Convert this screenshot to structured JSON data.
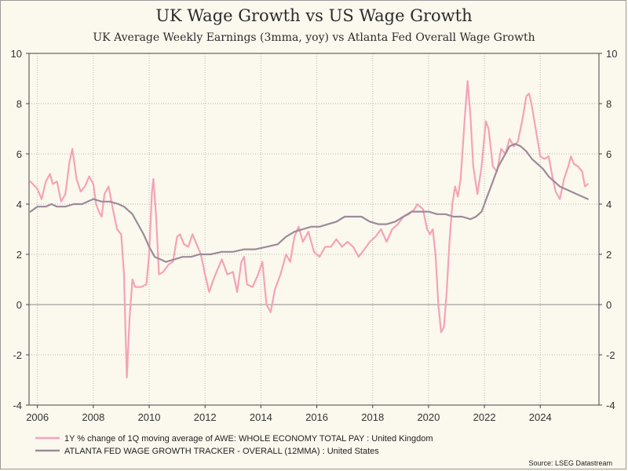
{
  "chart_data": {
    "type": "line",
    "title": "UK Wage Growth vs US Wage Growth",
    "subtitle": "UK Average Weekly Earnings (3mma, yoy) vs Atlanta Fed Overall Wage Growth",
    "source": "Source: LSEG Datastream",
    "xlim": [
      2005.7,
      2026.1
    ],
    "ylim": [
      -4,
      10
    ],
    "x_ticks": [
      2006,
      2008,
      2010,
      2012,
      2014,
      2016,
      2018,
      2020,
      2022,
      2024
    ],
    "x_tick_labels": [
      "2006",
      "2008",
      "2010",
      "2012",
      "2014",
      "2016",
      "2018",
      "2020",
      "2022",
      "2024"
    ],
    "y_ticks": [
      -4,
      -2,
      0,
      2,
      4,
      6,
      8,
      10
    ],
    "y_tick_labels": [
      "-4",
      "-2",
      "0",
      "2",
      "4",
      "6",
      "8",
      "10"
    ],
    "grid": true,
    "legend_position": "bottom-left",
    "series": [
      {
        "name": "1Y % change of 1Q moving average of AWE: WHOLE ECONOMY TOTAL PAY : United Kingdom",
        "color": "#f4a3b6",
        "points": [
          [
            2005.75,
            4.9
          ],
          [
            2006.0,
            4.6
          ],
          [
            2006.15,
            4.2
          ],
          [
            2006.3,
            4.9
          ],
          [
            2006.45,
            5.2
          ],
          [
            2006.55,
            4.8
          ],
          [
            2006.7,
            4.9
          ],
          [
            2006.85,
            4.1
          ],
          [
            2007.0,
            4.4
          ],
          [
            2007.15,
            5.7
          ],
          [
            2007.25,
            6.2
          ],
          [
            2007.4,
            5.0
          ],
          [
            2007.55,
            4.5
          ],
          [
            2007.7,
            4.7
          ],
          [
            2007.85,
            5.1
          ],
          [
            2008.0,
            4.8
          ],
          [
            2008.1,
            4.0
          ],
          [
            2008.2,
            3.7
          ],
          [
            2008.3,
            3.5
          ],
          [
            2008.4,
            4.4
          ],
          [
            2008.55,
            4.7
          ],
          [
            2008.7,
            3.8
          ],
          [
            2008.85,
            3.0
          ],
          [
            2009.0,
            2.8
          ],
          [
            2009.1,
            1.2
          ],
          [
            2009.15,
            -1.0
          ],
          [
            2009.2,
            -2.9
          ],
          [
            2009.3,
            -0.5
          ],
          [
            2009.4,
            1.0
          ],
          [
            2009.5,
            0.7
          ],
          [
            2009.7,
            0.7
          ],
          [
            2009.9,
            0.8
          ],
          [
            2010.0,
            2.0
          ],
          [
            2010.1,
            4.5
          ],
          [
            2010.15,
            5.0
          ],
          [
            2010.25,
            3.5
          ],
          [
            2010.35,
            1.2
          ],
          [
            2010.5,
            1.3
          ],
          [
            2010.7,
            1.6
          ],
          [
            2010.85,
            1.7
          ],
          [
            2011.0,
            2.7
          ],
          [
            2011.1,
            2.8
          ],
          [
            2011.25,
            2.4
          ],
          [
            2011.4,
            2.3
          ],
          [
            2011.55,
            2.8
          ],
          [
            2011.7,
            2.4
          ],
          [
            2011.85,
            2.0
          ],
          [
            2012.0,
            1.2
          ],
          [
            2012.15,
            0.5
          ],
          [
            2012.3,
            1.0
          ],
          [
            2012.45,
            1.4
          ],
          [
            2012.6,
            1.8
          ],
          [
            2012.8,
            1.2
          ],
          [
            2013.0,
            1.3
          ],
          [
            2013.15,
            0.5
          ],
          [
            2013.3,
            1.7
          ],
          [
            2013.4,
            1.9
          ],
          [
            2013.5,
            0.8
          ],
          [
            2013.7,
            0.7
          ],
          [
            2013.9,
            1.2
          ],
          [
            2014.05,
            1.7
          ],
          [
            2014.2,
            0.0
          ],
          [
            2014.35,
            -0.3
          ],
          [
            2014.5,
            0.6
          ],
          [
            2014.7,
            1.2
          ],
          [
            2014.9,
            2.0
          ],
          [
            2015.05,
            1.7
          ],
          [
            2015.2,
            2.7
          ],
          [
            2015.35,
            3.1
          ],
          [
            2015.5,
            2.5
          ],
          [
            2015.7,
            2.9
          ],
          [
            2015.9,
            2.1
          ],
          [
            2016.1,
            1.9
          ],
          [
            2016.3,
            2.3
          ],
          [
            2016.5,
            2.3
          ],
          [
            2016.7,
            2.6
          ],
          [
            2016.9,
            2.3
          ],
          [
            2017.1,
            2.5
          ],
          [
            2017.3,
            2.3
          ],
          [
            2017.5,
            1.9
          ],
          [
            2017.7,
            2.2
          ],
          [
            2017.9,
            2.5
          ],
          [
            2018.1,
            2.7
          ],
          [
            2018.3,
            3.0
          ],
          [
            2018.5,
            2.5
          ],
          [
            2018.7,
            3.0
          ],
          [
            2018.9,
            3.2
          ],
          [
            2019.1,
            3.5
          ],
          [
            2019.3,
            3.6
          ],
          [
            2019.5,
            3.8
          ],
          [
            2019.6,
            4.0
          ],
          [
            2019.8,
            3.8
          ],
          [
            2019.95,
            3.0
          ],
          [
            2020.05,
            2.8
          ],
          [
            2020.15,
            3.0
          ],
          [
            2020.25,
            2.0
          ],
          [
            2020.35,
            0.0
          ],
          [
            2020.45,
            -1.1
          ],
          [
            2020.55,
            -0.9
          ],
          [
            2020.65,
            0.5
          ],
          [
            2020.75,
            2.5
          ],
          [
            2020.85,
            4.0
          ],
          [
            2020.95,
            4.7
          ],
          [
            2021.05,
            4.3
          ],
          [
            2021.15,
            5.0
          ],
          [
            2021.3,
            7.5
          ],
          [
            2021.4,
            8.9
          ],
          [
            2021.5,
            7.5
          ],
          [
            2021.6,
            5.5
          ],
          [
            2021.75,
            4.4
          ],
          [
            2021.9,
            5.5
          ],
          [
            2022.05,
            7.3
          ],
          [
            2022.15,
            7.0
          ],
          [
            2022.3,
            5.5
          ],
          [
            2022.45,
            5.3
          ],
          [
            2022.6,
            6.2
          ],
          [
            2022.75,
            6.0
          ],
          [
            2022.9,
            6.6
          ],
          [
            2023.05,
            6.3
          ],
          [
            2023.2,
            6.5
          ],
          [
            2023.35,
            7.3
          ],
          [
            2023.5,
            8.3
          ],
          [
            2023.6,
            8.4
          ],
          [
            2023.7,
            7.9
          ],
          [
            2023.85,
            6.9
          ],
          [
            2024.0,
            5.9
          ],
          [
            2024.15,
            5.8
          ],
          [
            2024.3,
            5.9
          ],
          [
            2024.45,
            5.0
          ],
          [
            2024.55,
            4.5
          ],
          [
            2024.7,
            4.2
          ],
          [
            2024.85,
            5.0
          ],
          [
            2025.0,
            5.5
          ],
          [
            2025.1,
            5.9
          ],
          [
            2025.2,
            5.6
          ],
          [
            2025.35,
            5.5
          ],
          [
            2025.5,
            5.3
          ],
          [
            2025.6,
            4.7
          ],
          [
            2025.7,
            4.8
          ]
        ]
      },
      {
        "name": "ATLANTA FED WAGE GROWTH TRACKER - OVERALL (12MMA) : United States",
        "color": "#9c8b99",
        "points": [
          [
            2005.75,
            3.7
          ],
          [
            2006.0,
            3.9
          ],
          [
            2006.3,
            3.9
          ],
          [
            2006.5,
            4.0
          ],
          [
            2006.7,
            3.9
          ],
          [
            2007.0,
            3.9
          ],
          [
            2007.3,
            4.0
          ],
          [
            2007.6,
            4.0
          ],
          [
            2007.8,
            4.1
          ],
          [
            2008.0,
            4.2
          ],
          [
            2008.3,
            4.1
          ],
          [
            2008.6,
            4.1
          ],
          [
            2008.9,
            4.0
          ],
          [
            2009.1,
            3.9
          ],
          [
            2009.4,
            3.6
          ],
          [
            2009.6,
            3.2
          ],
          [
            2009.8,
            2.8
          ],
          [
            2010.0,
            2.3
          ],
          [
            2010.2,
            1.9
          ],
          [
            2010.4,
            1.8
          ],
          [
            2010.6,
            1.7
          ],
          [
            2010.9,
            1.8
          ],
          [
            2011.2,
            1.9
          ],
          [
            2011.5,
            1.9
          ],
          [
            2011.8,
            2.0
          ],
          [
            2012.2,
            2.0
          ],
          [
            2012.6,
            2.1
          ],
          [
            2013.0,
            2.1
          ],
          [
            2013.4,
            2.2
          ],
          [
            2013.8,
            2.2
          ],
          [
            2014.2,
            2.3
          ],
          [
            2014.6,
            2.4
          ],
          [
            2014.9,
            2.7
          ],
          [
            2015.2,
            2.9
          ],
          [
            2015.5,
            3.0
          ],
          [
            2015.8,
            3.1
          ],
          [
            2016.1,
            3.1
          ],
          [
            2016.4,
            3.2
          ],
          [
            2016.7,
            3.3
          ],
          [
            2017.0,
            3.5
          ],
          [
            2017.3,
            3.5
          ],
          [
            2017.6,
            3.5
          ],
          [
            2017.9,
            3.3
          ],
          [
            2018.2,
            3.2
          ],
          [
            2018.5,
            3.2
          ],
          [
            2018.8,
            3.3
          ],
          [
            2019.1,
            3.5
          ],
          [
            2019.4,
            3.7
          ],
          [
            2019.7,
            3.7
          ],
          [
            2020.0,
            3.7
          ],
          [
            2020.3,
            3.6
          ],
          [
            2020.6,
            3.6
          ],
          [
            2020.9,
            3.5
          ],
          [
            2021.2,
            3.5
          ],
          [
            2021.5,
            3.4
          ],
          [
            2021.7,
            3.5
          ],
          [
            2021.9,
            3.7
          ],
          [
            2022.1,
            4.3
          ],
          [
            2022.3,
            4.9
          ],
          [
            2022.5,
            5.5
          ],
          [
            2022.7,
            5.9
          ],
          [
            2022.9,
            6.3
          ],
          [
            2023.1,
            6.4
          ],
          [
            2023.3,
            6.3
          ],
          [
            2023.5,
            6.1
          ],
          [
            2023.7,
            5.8
          ],
          [
            2023.9,
            5.6
          ],
          [
            2024.1,
            5.4
          ],
          [
            2024.3,
            5.1
          ],
          [
            2024.5,
            4.9
          ],
          [
            2024.7,
            4.7
          ],
          [
            2024.9,
            4.6
          ],
          [
            2025.1,
            4.5
          ],
          [
            2025.3,
            4.4
          ],
          [
            2025.5,
            4.3
          ],
          [
            2025.7,
            4.2
          ]
        ]
      }
    ]
  }
}
